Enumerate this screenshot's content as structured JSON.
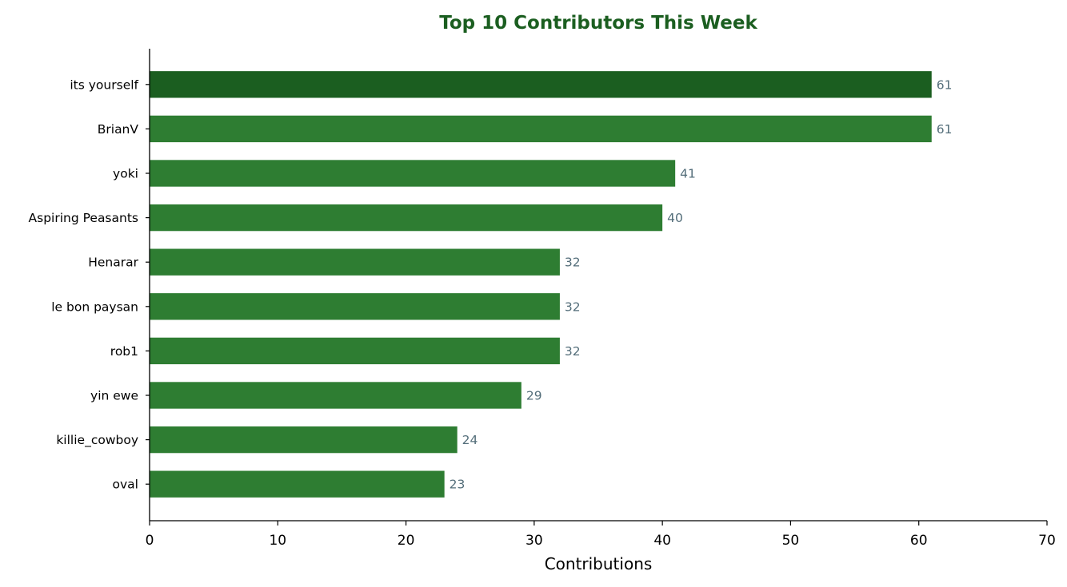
{
  "chart_data": {
    "type": "bar",
    "orientation": "horizontal",
    "title": "Top 10 Contributors This Week",
    "xlabel": "Contributions",
    "ylabel": "",
    "categories": [
      "its yourself",
      "BrianV",
      "yoki",
      "Aspiring Peasants",
      "Henarar",
      "le bon paysan",
      "rob1",
      "yin ewe",
      "killie_cowboy",
      "oval"
    ],
    "values": [
      61,
      61,
      41,
      40,
      32,
      32,
      32,
      29,
      24,
      23
    ],
    "value_labels": [
      "61",
      "61",
      "41",
      "40",
      "32",
      "32",
      "32",
      "29",
      "24",
      "23"
    ],
    "xlim": [
      0,
      70
    ],
    "xticks": [
      0,
      10,
      20,
      30,
      40,
      50,
      60,
      70
    ],
    "xtick_labels": [
      "0",
      "10",
      "20",
      "30",
      "40",
      "50",
      "60",
      "70"
    ],
    "grid": false,
    "legend": "none",
    "colors": {
      "top_bar": "#1b5e20",
      "bar": "#2e7d32",
      "title": "#1b5e20",
      "value_label": "#546e7a",
      "axis": "#000000"
    }
  }
}
